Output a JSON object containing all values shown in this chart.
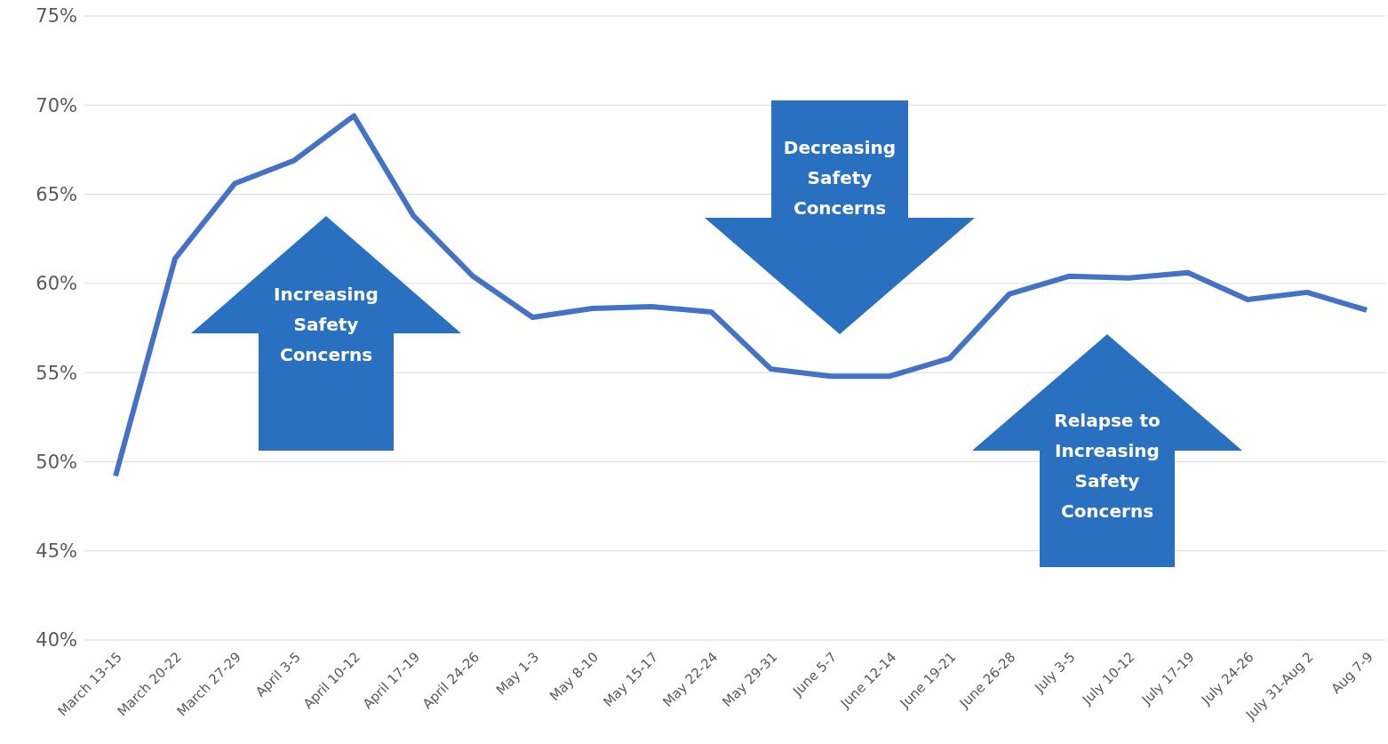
{
  "chart_data": {
    "type": "line",
    "categories": [
      "March 13-15",
      "March 20-22",
      "March 27-29",
      "April 3-5",
      "April 10-12",
      "April 17-19",
      "April 24-26",
      "May 1-3",
      "May 8-10",
      "May 15-17",
      "May 22-24",
      "May 29-31",
      "June 5-7",
      "June 12-14",
      "June 19-21",
      "June 26-28",
      "July 3-5",
      "July 10-12",
      "July 17-19",
      "July 24-26",
      "July 31-Aug 2",
      "Aug 7-9"
    ],
    "series": [
      {
        "color": "#4472c4",
        "values": [
          49.2,
          61.4,
          65.6,
          66.9,
          69.4,
          63.8,
          60.4,
          58.1,
          58.6,
          58.7,
          58.4,
          55.2,
          54.8,
          54.8,
          55.8,
          59.4,
          60.4,
          60.3,
          60.6,
          59.1,
          59.5,
          58.5
        ]
      }
    ],
    "ylim": [
      40,
      75
    ],
    "yticks": [
      {
        "value": 40,
        "label": "40%"
      },
      {
        "value": 45,
        "label": "45%"
      },
      {
        "value": 50,
        "label": "50%"
      },
      {
        "value": 55,
        "label": "55%"
      },
      {
        "value": 60,
        "label": "60%"
      },
      {
        "value": 65,
        "label": "65%"
      },
      {
        "value": 70,
        "label": "70%"
      },
      {
        "value": 75,
        "label": "75%"
      }
    ],
    "grid": "y",
    "legend": false,
    "marker": "none",
    "line_style": "solid",
    "annotations": [
      "Increasing Safety Concerns",
      "Decreasing Safety Concerns",
      "Relapse to Increasing Safety Concerns"
    ]
  }
}
